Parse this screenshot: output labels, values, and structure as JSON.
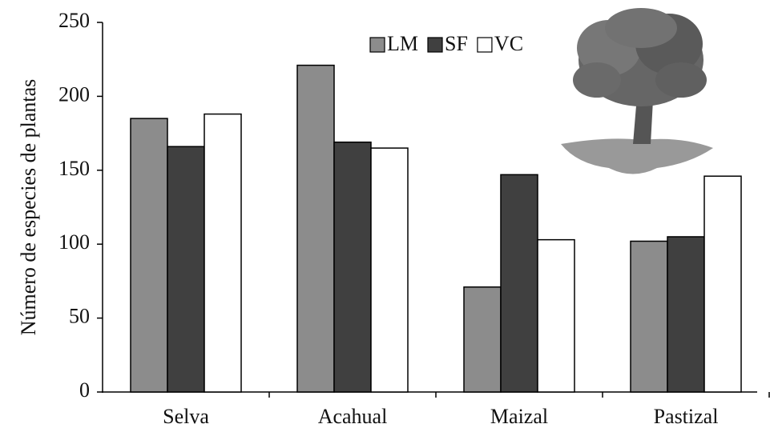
{
  "chart_data": {
    "type": "bar",
    "y_label": "Número de especies de plantas",
    "categories": [
      "Selva",
      "Acahual",
      "Maizal",
      "Pastizal"
    ],
    "series": [
      {
        "name": "LM",
        "color": "#8c8c8c",
        "values": [
          185,
          221,
          71,
          102
        ]
      },
      {
        "name": "SF",
        "color": "#404040",
        "values": [
          166,
          169,
          147,
          105
        ]
      },
      {
        "name": "VC",
        "color": "#ffffff",
        "values": [
          188,
          165,
          103,
          146
        ]
      }
    ],
    "ylim": [
      0,
      250
    ],
    "yticks": [
      0,
      50,
      100,
      150,
      200,
      250
    ],
    "grid": false
  }
}
